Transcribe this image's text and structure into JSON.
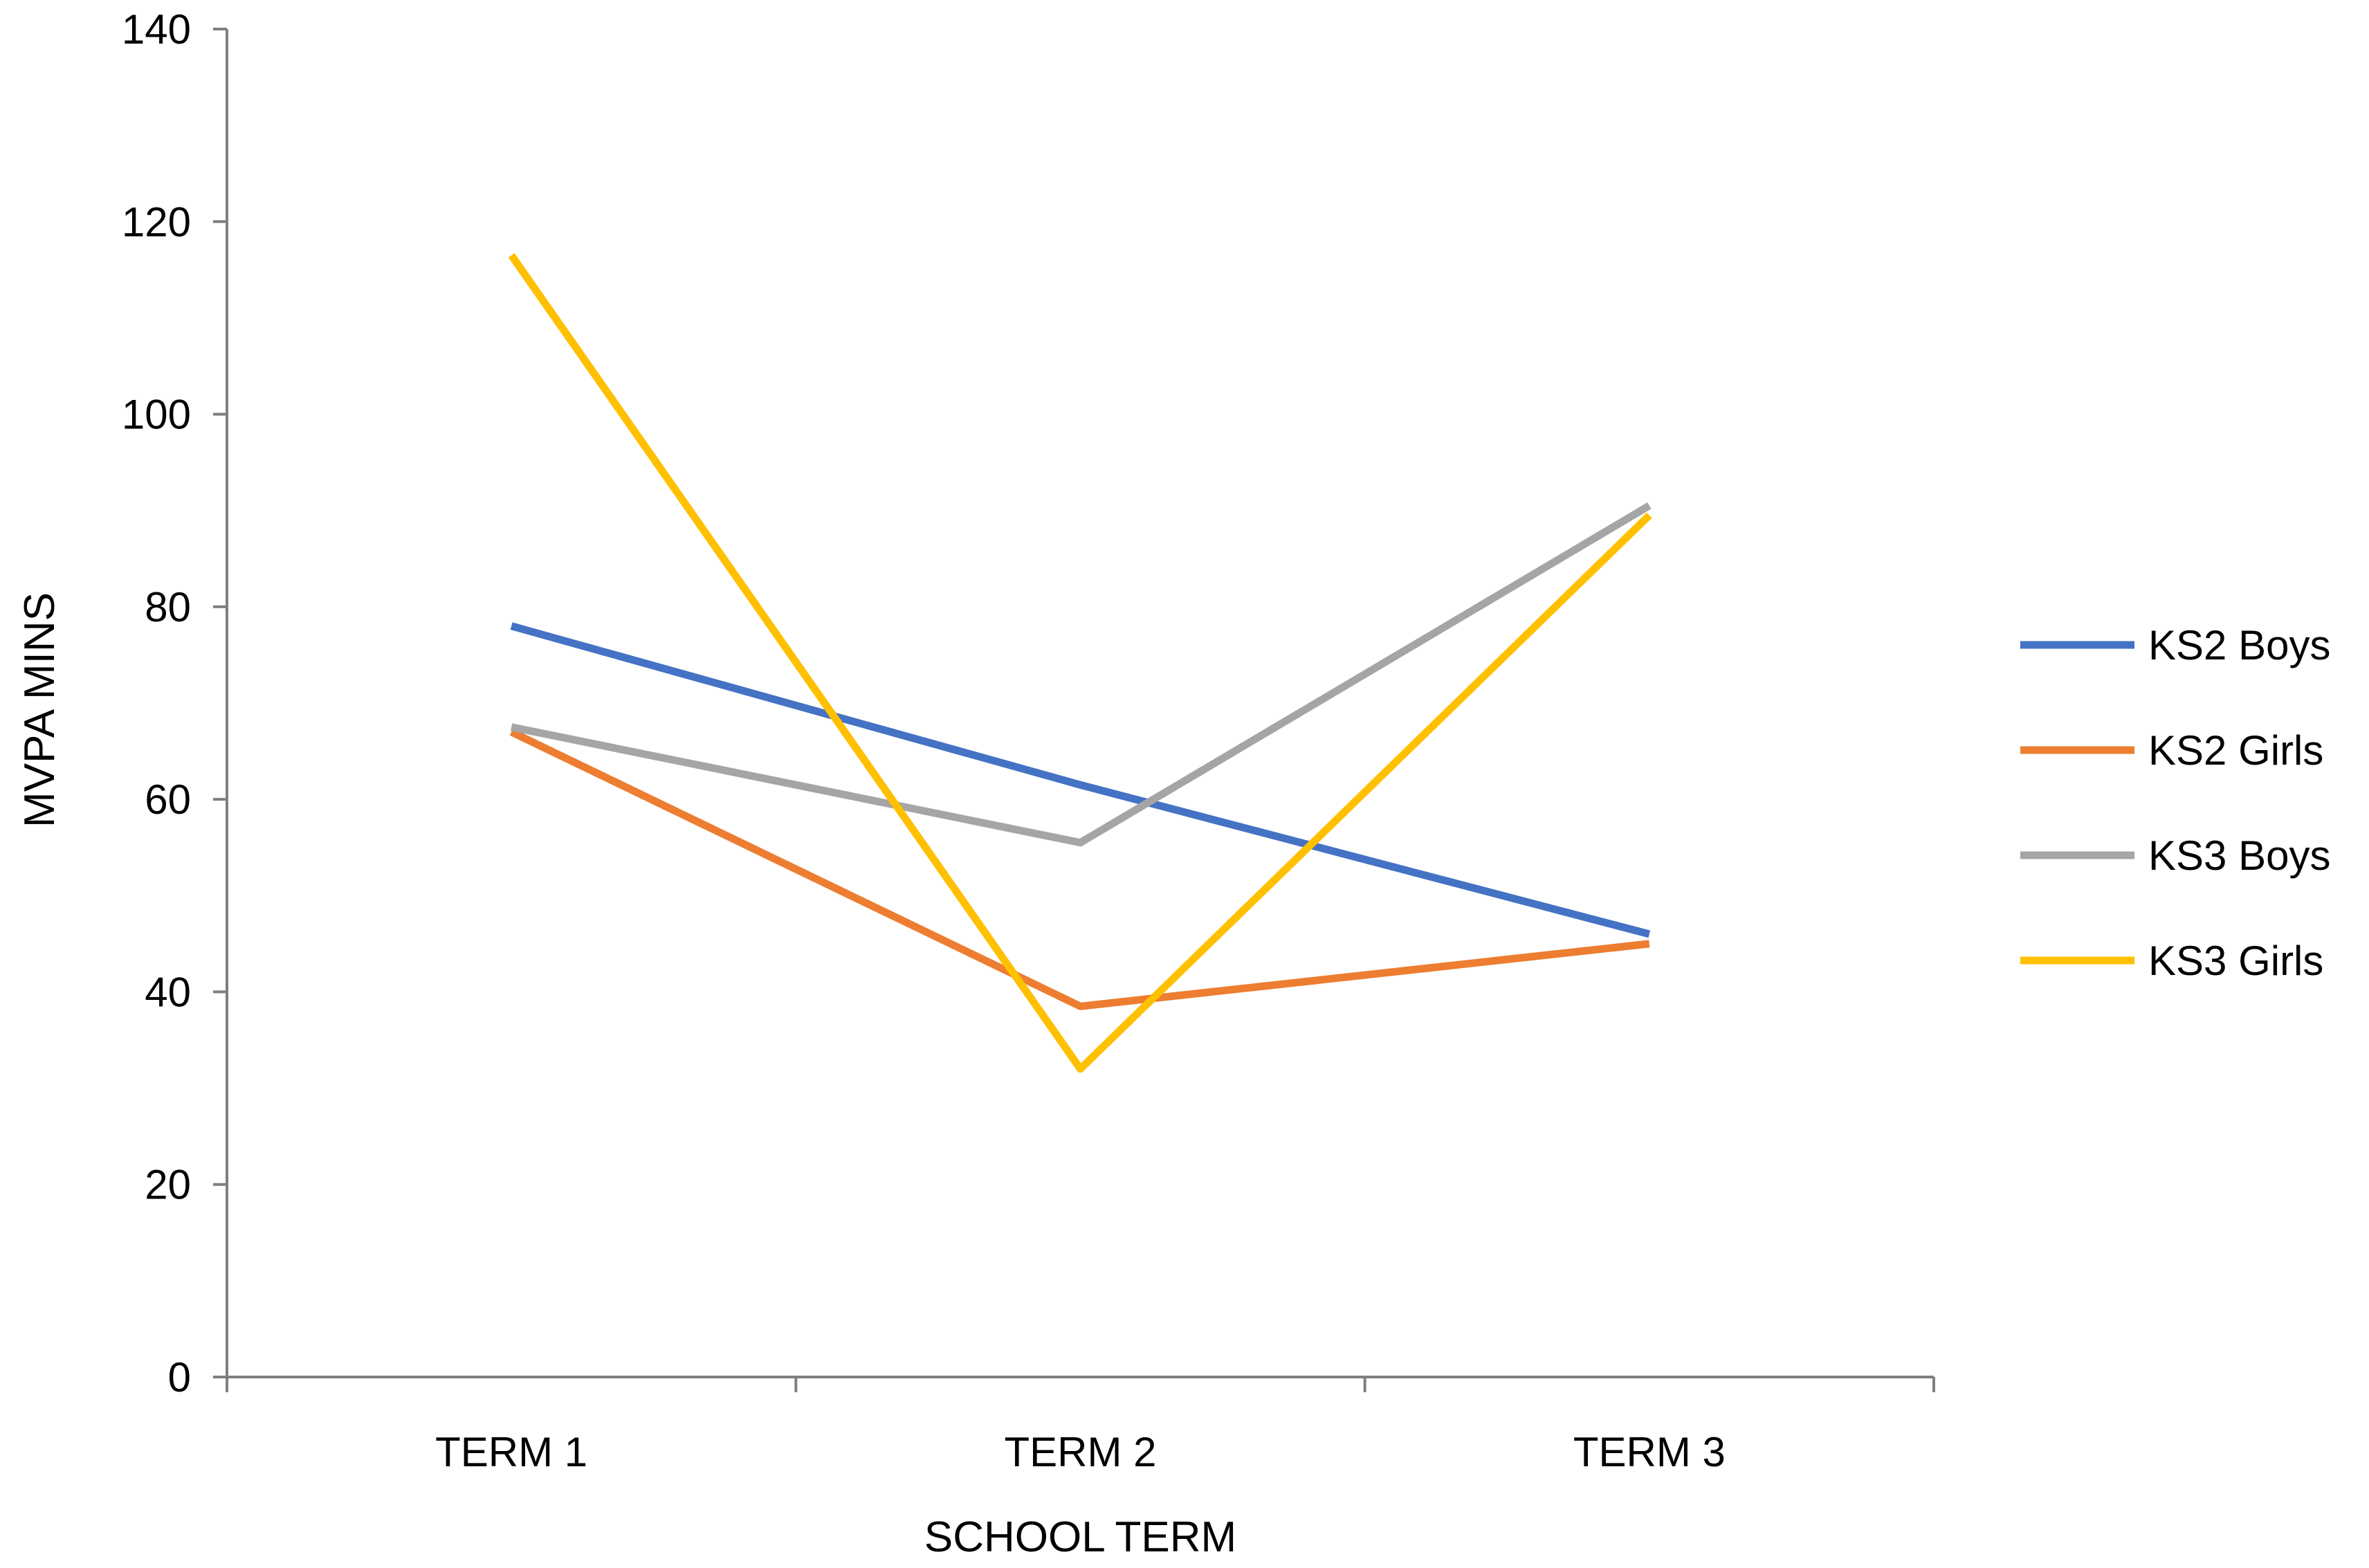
{
  "chart_data": {
    "type": "line",
    "title": "",
    "xlabel": "SCHOOL TERM",
    "ylabel": "MVPA MINS",
    "ylim": [
      0,
      140
    ],
    "y_ticks": [
      0,
      20,
      40,
      60,
      80,
      100,
      120,
      140
    ],
    "categories": [
      "TERM 1",
      "TERM 2",
      "TERM 3"
    ],
    "grid": false,
    "legend_position": "right",
    "series": [
      {
        "name": "KS2 Boys",
        "color": "#4472C4",
        "values": [
          78,
          61.5,
          46
        ]
      },
      {
        "name": "KS2 Girls",
        "color": "#ED7D31",
        "values": [
          67,
          38.5,
          45
        ]
      },
      {
        "name": "KS3 Boys",
        "color": "#A5A5A5",
        "values": [
          67.5,
          55.5,
          90.5
        ]
      },
      {
        "name": "KS3 Girls",
        "color": "#FFC000",
        "values": [
          116.5,
          32,
          89.5
        ]
      }
    ]
  }
}
